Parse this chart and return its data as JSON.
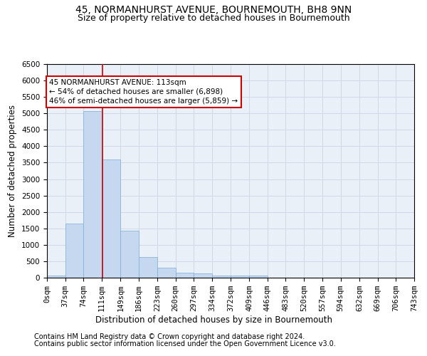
{
  "title": "45, NORMANHURST AVENUE, BOURNEMOUTH, BH8 9NN",
  "subtitle": "Size of property relative to detached houses in Bournemouth",
  "xlabel": "Distribution of detached houses by size in Bournemouth",
  "ylabel": "Number of detached properties",
  "footer1": "Contains HM Land Registry data © Crown copyright and database right 2024.",
  "footer2": "Contains public sector information licensed under the Open Government Licence v3.0.",
  "bin_edges": [
    0,
    37,
    74,
    111,
    149,
    186,
    223,
    260,
    297,
    334,
    372,
    409,
    446,
    483,
    520,
    557,
    594,
    632,
    669,
    706,
    743
  ],
  "bar_heights": [
    75,
    1650,
    5075,
    3600,
    1420,
    620,
    295,
    155,
    120,
    75,
    55,
    75,
    0,
    0,
    0,
    0,
    0,
    0,
    0,
    0
  ],
  "bar_color": "#c5d8f0",
  "bar_edge_color": "#7aadd4",
  "grid_color": "#d0d8e8",
  "property_size": 113,
  "vline_color": "#cc0000",
  "annotation_line1": "45 NORMANHURST AVENUE: 113sqm",
  "annotation_line2": "← 54% of detached houses are smaller (6,898)",
  "annotation_line3": "46% of semi-detached houses are larger (5,859) →",
  "annotation_box_color": "#ffffff",
  "annotation_border_color": "#cc0000",
  "ylim": [
    0,
    6500
  ],
  "title_fontsize": 10,
  "subtitle_fontsize": 9,
  "label_fontsize": 8.5,
  "tick_fontsize": 7.5,
  "footer_fontsize": 7,
  "background_color": "#ffffff",
  "axes_bg_color": "#eaf0f8"
}
